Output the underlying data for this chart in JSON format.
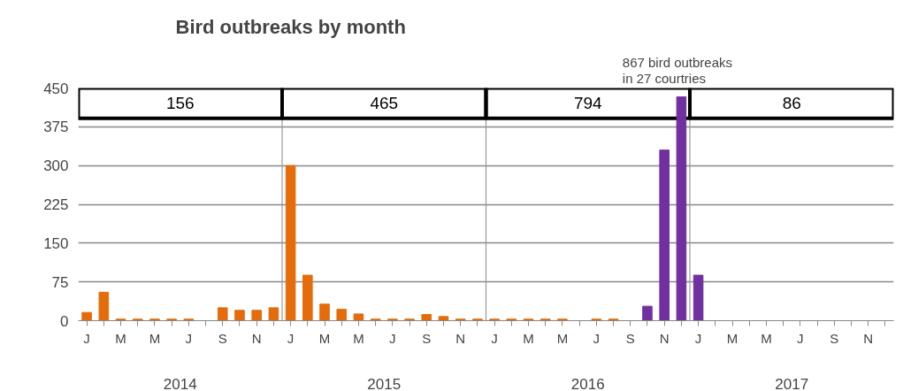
{
  "chart_data": {
    "type": "bar",
    "title": "Bird outbreaks by month",
    "categories": [
      "J",
      null,
      "M",
      null,
      "M",
      null,
      "J",
      null,
      "S",
      null,
      "N",
      null,
      "J",
      null,
      "M",
      null,
      "M",
      null,
      "J",
      null,
      "S",
      null,
      "N",
      null,
      "J",
      null,
      "M",
      null,
      "M",
      null,
      "J",
      null,
      "S",
      null,
      "N",
      null,
      "J",
      null,
      "M",
      null,
      "M",
      null,
      "J",
      null,
      "S",
      null,
      "N",
      null
    ],
    "values": [
      16,
      55,
      3,
      3,
      3,
      3,
      3,
      0,
      25,
      20,
      20,
      25,
      300,
      88,
      32,
      22,
      13,
      3,
      3,
      3,
      12,
      8,
      3,
      3,
      3,
      3,
      3,
      3,
      3,
      0,
      3,
      3,
      0,
      28,
      330,
      433,
      88,
      0,
      0,
      0,
      0,
      0,
      0,
      0,
      0,
      0,
      0,
      0
    ],
    "colors": [
      "#e46c0a",
      "#e46c0a",
      "#e46c0a",
      "#e46c0a",
      "#e46c0a",
      "#e46c0a",
      "#e46c0a",
      "#e46c0a",
      "#e46c0a",
      "#e46c0a",
      "#e46c0a",
      "#e46c0a",
      "#e46c0a",
      "#e46c0a",
      "#e46c0a",
      "#e46c0a",
      "#e46c0a",
      "#e46c0a",
      "#e46c0a",
      "#e46c0a",
      "#e46c0a",
      "#e46c0a",
      "#e46c0a",
      "#e46c0a",
      "#e46c0a",
      "#e46c0a",
      "#e46c0a",
      "#e46c0a",
      "#e46c0a",
      "#e46c0a",
      "#e46c0a",
      "#e46c0a",
      "#e46c0a",
      "#7030a0",
      "#7030a0",
      "#7030a0",
      "#7030a0",
      "#7030a0",
      "#7030a0",
      "#7030a0",
      "#7030a0",
      "#7030a0",
      "#7030a0",
      "#7030a0",
      "#7030a0",
      "#7030a0",
      "#7030a0",
      "#7030a0"
    ],
    "ylim": [
      0,
      450
    ],
    "yticks": [
      0,
      75,
      150,
      225,
      300,
      375,
      450
    ],
    "grid": "y",
    "annotations": [
      "156",
      "465",
      "794",
      "86",
      "2014",
      "2015",
      "2016",
      "2017",
      "867 bird outbreaks\nin 27 courtries"
    ]
  }
}
